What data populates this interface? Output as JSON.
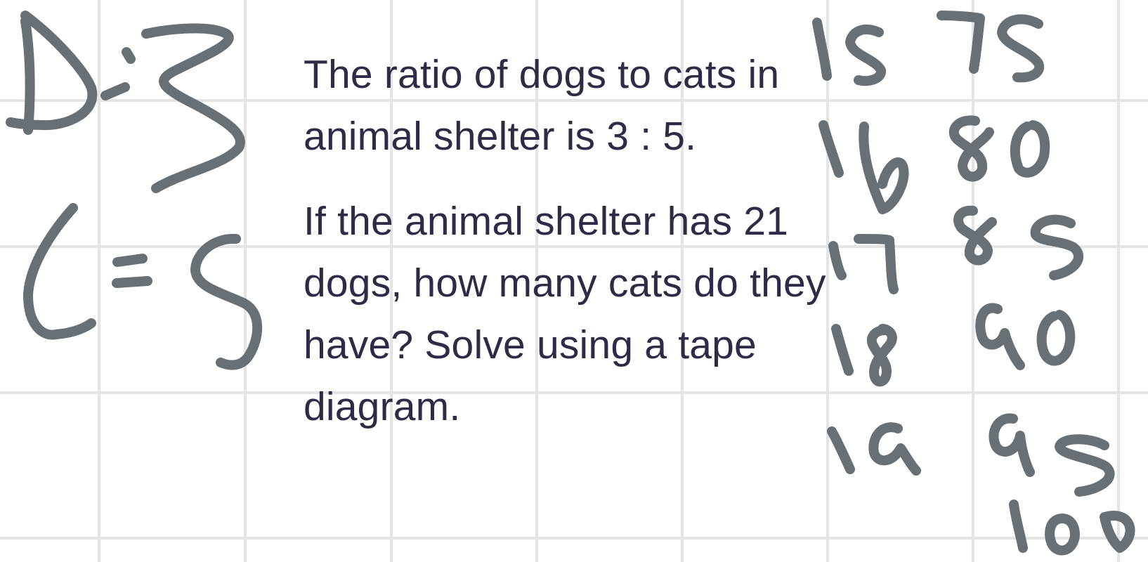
{
  "question": {
    "line1": "The ratio of dogs to cats in",
    "line2": "animal shelter is 3 : 5.",
    "line3": "If the animal shelter has 21",
    "line4": "dogs, how many cats do they",
    "line5": "have? Solve using a tape",
    "line6": "diagram."
  },
  "handwriting": {
    "left": [
      "D:3",
      "C=5"
    ],
    "dogs_column": [
      "15",
      "16",
      "17",
      "18",
      "19"
    ],
    "cats_column": [
      "75",
      "80",
      "85",
      "90",
      "95",
      "100"
    ]
  },
  "colors": {
    "ink": "#686f75",
    "text": "#2d2b45",
    "grid": "#e6e6e6",
    "background": "#ffffff"
  }
}
